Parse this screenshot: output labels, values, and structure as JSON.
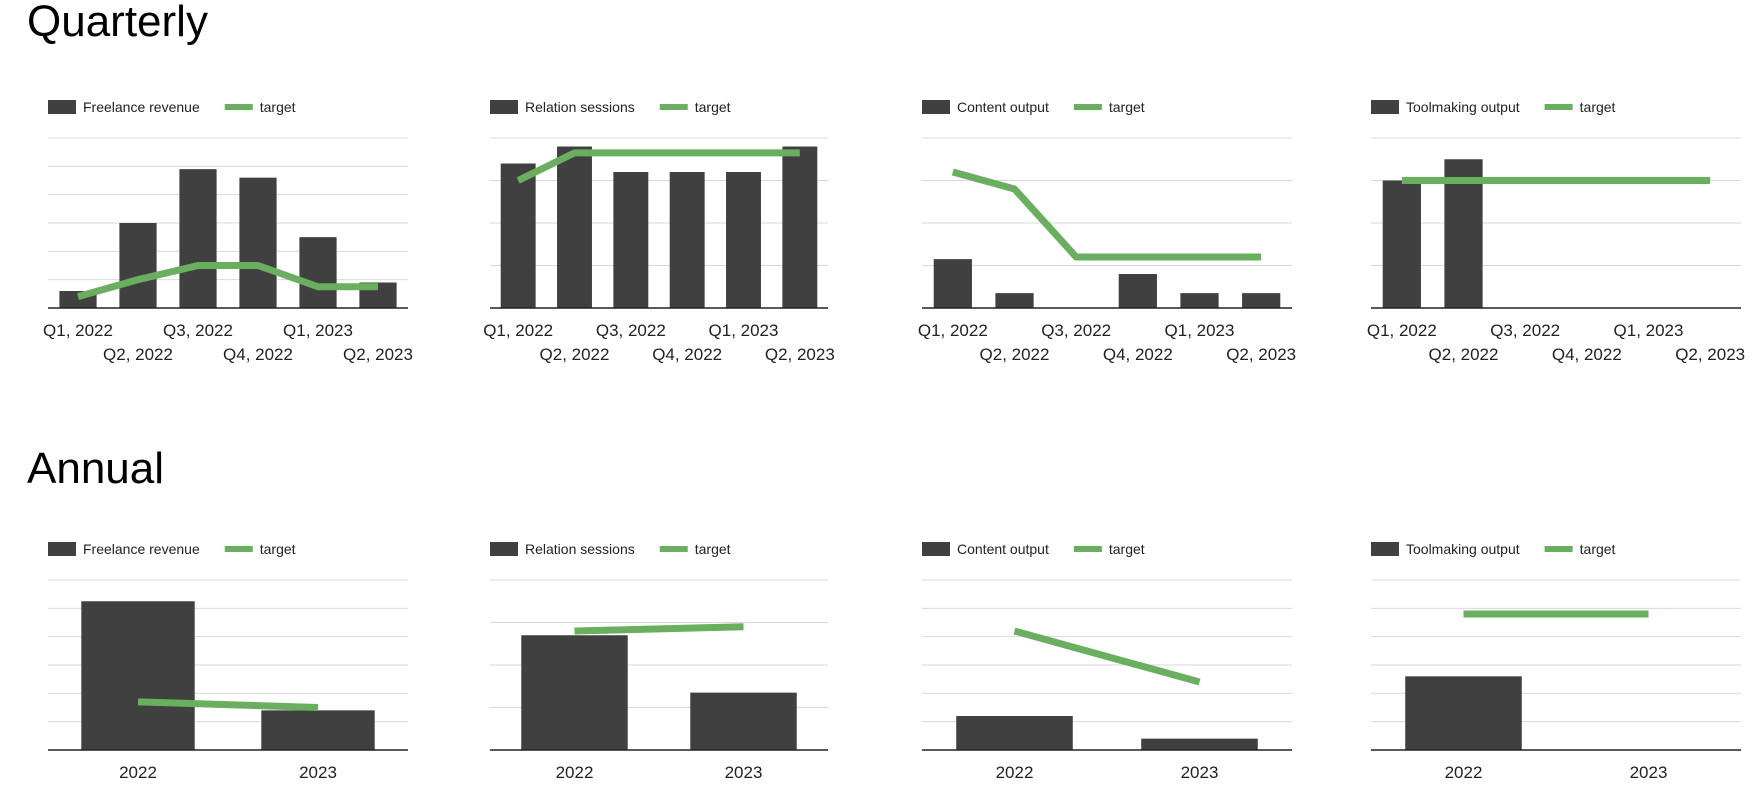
{
  "sections": {
    "quarterly": {
      "title": "Quarterly"
    },
    "annual": {
      "title": "Annual"
    }
  },
  "colors": {
    "bar": "#404040",
    "target": "#6aaf5f",
    "grid": "#d9d9d9",
    "axis": "#222222"
  },
  "chart_data": [
    {
      "type": "bar",
      "section": "Quarterly",
      "categories": [
        "Q1, 2022",
        "Q2, 2022",
        "Q3, 2022",
        "Q4, 2022",
        "Q1, 2023",
        "Q2, 2023"
      ],
      "series": [
        {
          "name": "Freelance revenue",
          "kind": "bar",
          "values": [
            0.6,
            3.0,
            4.9,
            4.6,
            2.5,
            0.9
          ]
        },
        {
          "name": "target",
          "kind": "line",
          "values": [
            0.4,
            1.0,
            1.5,
            1.5,
            0.75,
            0.75
          ]
        }
      ],
      "ylim": [
        0,
        6
      ],
      "grid": true,
      "legend": "top-left"
    },
    {
      "type": "bar",
      "section": "Quarterly",
      "categories": [
        "Q1, 2022",
        "Q2, 2022",
        "Q3, 2022",
        "Q4, 2022",
        "Q1, 2023",
        "Q2, 2023"
      ],
      "series": [
        {
          "name": "Relation sessions",
          "kind": "bar",
          "values": [
            3.4,
            3.8,
            3.2,
            3.2,
            3.2,
            3.8
          ]
        },
        {
          "name": "target",
          "kind": "line",
          "values": [
            3.0,
            3.65,
            3.65,
            3.65,
            3.65,
            3.65
          ]
        }
      ],
      "ylim": [
        0,
        4
      ],
      "grid": true,
      "legend": "top-left"
    },
    {
      "type": "bar",
      "section": "Quarterly",
      "categories": [
        "Q1, 2022",
        "Q2, 2022",
        "Q3, 2022",
        "Q4, 2022",
        "Q1, 2023",
        "Q2, 2023"
      ],
      "series": [
        {
          "name": "Content output",
          "kind": "bar",
          "values": [
            1.15,
            0.35,
            0,
            0.8,
            0.35,
            0.35
          ]
        },
        {
          "name": "target",
          "kind": "line",
          "values": [
            3.2,
            2.8,
            1.2,
            1.2,
            1.2,
            1.2
          ]
        }
      ],
      "ylim": [
        0,
        4
      ],
      "grid": true,
      "legend": "top-left"
    },
    {
      "type": "bar",
      "section": "Quarterly",
      "categories": [
        "Q1, 2022",
        "Q2, 2022",
        "Q3, 2022",
        "Q4, 2022",
        "Q1, 2023",
        "Q2, 2023"
      ],
      "series": [
        {
          "name": "Toolmaking output",
          "kind": "bar",
          "values": [
            3.0,
            3.5,
            0,
            0,
            0,
            0
          ]
        },
        {
          "name": "target",
          "kind": "line",
          "values": [
            3.0,
            3.0,
            3.0,
            3.0,
            3.0,
            3.0
          ]
        }
      ],
      "ylim": [
        0,
        4
      ],
      "grid": true,
      "legend": "top-left"
    },
    {
      "type": "bar",
      "section": "Annual",
      "categories": [
        "2022",
        "2023"
      ],
      "series": [
        {
          "name": "Freelance revenue",
          "kind": "bar",
          "values": [
            5.25,
            1.4
          ]
        },
        {
          "name": "target",
          "kind": "line",
          "values": [
            1.7,
            1.5
          ]
        }
      ],
      "ylim": [
        0,
        6
      ],
      "grid": true,
      "legend": "top-left"
    },
    {
      "type": "bar",
      "section": "Annual",
      "categories": [
        "2022",
        "2023"
      ],
      "series": [
        {
          "name": "Relation sessions",
          "kind": "bar",
          "values": [
            2.7,
            1.35
          ]
        },
        {
          "name": "target",
          "kind": "line",
          "values": [
            2.8,
            2.9
          ]
        }
      ],
      "ylim": [
        0,
        4
      ],
      "grid": true,
      "legend": "top-left"
    },
    {
      "type": "bar",
      "section": "Annual",
      "categories": [
        "2022",
        "2023"
      ],
      "series": [
        {
          "name": "Content output",
          "kind": "bar",
          "values": [
            1.2,
            0.4
          ]
        },
        {
          "name": "target",
          "kind": "line",
          "values": [
            4.2,
            2.4
          ]
        }
      ],
      "ylim": [
        0,
        6
      ],
      "grid": true,
      "legend": "top-left"
    },
    {
      "type": "bar",
      "section": "Annual",
      "categories": [
        "2022",
        "2023"
      ],
      "series": [
        {
          "name": "Toolmaking output",
          "kind": "bar",
          "values": [
            2.6,
            0
          ]
        },
        {
          "name": "target",
          "kind": "line",
          "values": [
            4.8,
            4.8
          ]
        }
      ],
      "ylim": [
        0,
        6
      ],
      "grid": true,
      "legend": "top-left"
    }
  ]
}
